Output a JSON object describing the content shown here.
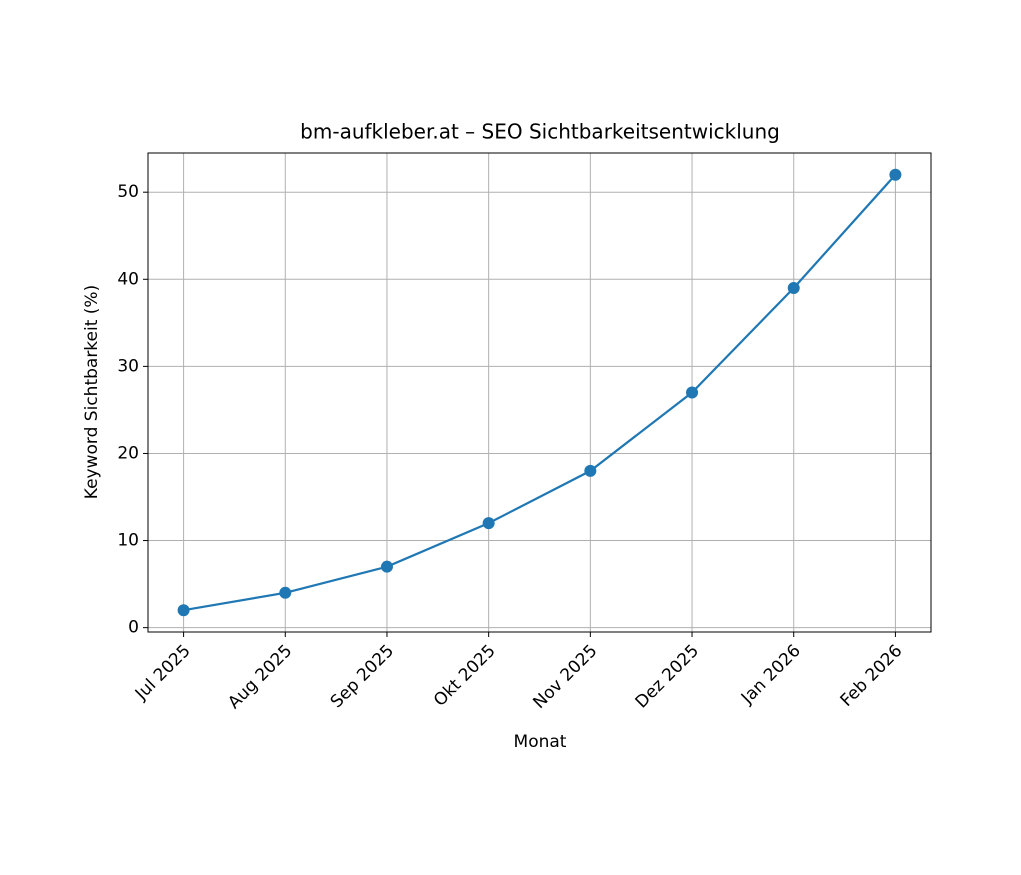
{
  "chart_data": {
    "type": "line",
    "title": "bm-aufkleber.at – SEO Sichtbarkeitsentwicklung",
    "x_label": "Monat",
    "y_label": "Keyword Sichtbarkeit (%)",
    "categories": [
      "Jul 2025",
      "Aug 2025",
      "Sep 2025",
      "Okt 2025",
      "Nov 2025",
      "Dez 2025",
      "Jan 2026",
      "Feb 2026"
    ],
    "values": [
      2,
      4,
      7,
      12,
      18,
      27,
      39,
      52
    ],
    "color": "#1f77b4",
    "ylim": [
      -0.5,
      54.5
    ],
    "yticks": [
      0,
      10,
      20,
      30,
      40,
      50
    ],
    "grid": true
  }
}
